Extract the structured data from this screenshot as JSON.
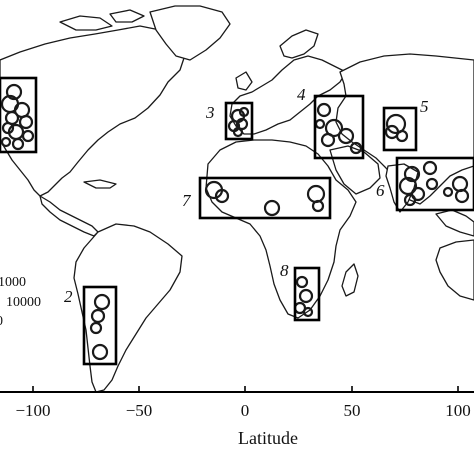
{
  "chart_data": {
    "type": "map",
    "xlabel": "Latitude",
    "x_ticks": [
      "−100",
      "−50",
      "0",
      "50",
      "100"
    ],
    "regions": [
      {
        "id": "region-1",
        "label": ""
      },
      {
        "id": "region-2",
        "label": "2"
      },
      {
        "id": "region-3",
        "label": "3"
      },
      {
        "id": "region-4",
        "label": "4"
      },
      {
        "id": "region-5",
        "label": "5"
      },
      {
        "id": "region-6",
        "label": "6"
      },
      {
        "id": "region-7",
        "label": "7"
      },
      {
        "id": "region-8",
        "label": "8"
      }
    ],
    "legend": [
      "1000",
      "10000",
      "0"
    ]
  }
}
